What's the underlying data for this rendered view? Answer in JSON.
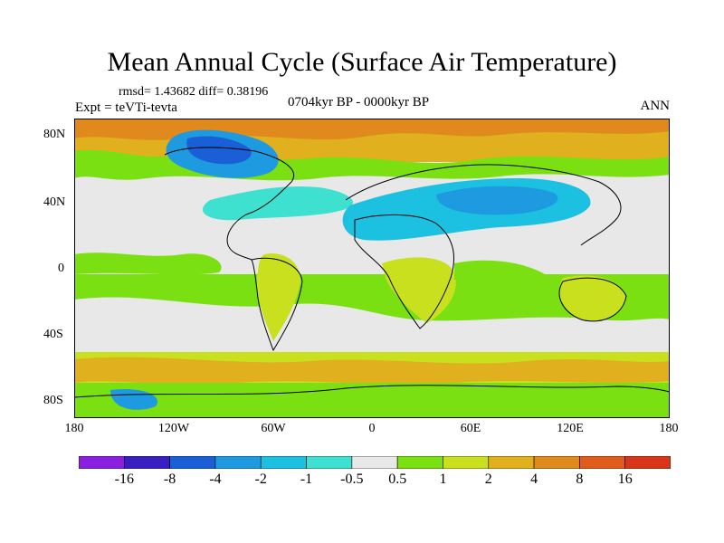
{
  "title": "Mean Annual Cycle (Surface Air Temperature)",
  "stats": "rmsd= 1.43682 diff= 0.38196",
  "experiment": "Expt = teVTi-tevta",
  "period": "0704kyr BP - 0000kyr BP",
  "season": "ANN",
  "lat_labels": [
    "80N",
    "40N",
    "0",
    "40S",
    "80S"
  ],
  "lon_labels": [
    "180",
    "120W",
    "60W",
    "0",
    "60E",
    "120E",
    "180"
  ],
  "colorbar": {
    "labels": [
      "-16",
      "-8",
      "-4",
      "-2",
      "-1",
      "-0.5",
      "0.5",
      "1",
      "2",
      "4",
      "8",
      "16"
    ],
    "colors": [
      "#8a1fe0",
      "#3a1fc0",
      "#1b5fd6",
      "#1e9ae0",
      "#1cc0e0",
      "#3ee0d0",
      "#e8e8e8",
      "#7ae012",
      "#c8e01e",
      "#e0b01e",
      "#e08a1e",
      "#e05c1a",
      "#d8361a"
    ]
  }
}
